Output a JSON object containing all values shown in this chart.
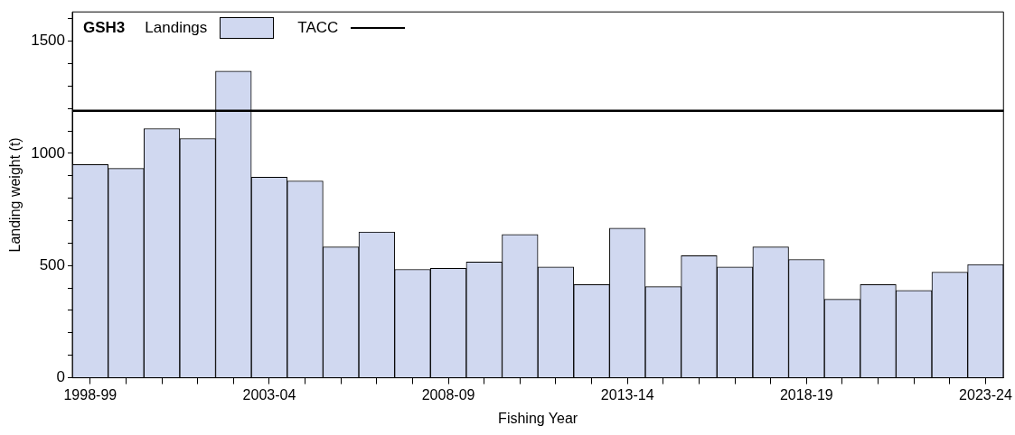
{
  "chart_data": {
    "type": "bar",
    "legend_title": "GSH3",
    "xlabel": "Fishing Year",
    "ylabel": "Landing weight (t)",
    "categories": [
      "1998-99",
      null,
      null,
      null,
      null,
      "2003-04",
      null,
      null,
      null,
      null,
      "2008-09",
      null,
      null,
      null,
      null,
      "2013-14",
      null,
      null,
      null,
      null,
      "2018-19",
      null,
      null,
      null,
      null,
      "2023-24"
    ],
    "series": [
      {
        "name": "Landings",
        "color": "#d0d8f0",
        "values": [
          950,
          933,
          1110,
          1066,
          1366,
          894,
          877,
          583,
          649,
          483,
          488,
          516,
          638,
          494,
          415,
          667,
          406,
          544,
          494,
          583,
          527,
          350,
          415,
          389,
          471,
          505
        ]
      }
    ],
    "ref_lines": [
      {
        "axis": "y",
        "value": 1190,
        "label": "TACC",
        "color": "#000000",
        "line_style": "solid"
      }
    ],
    "ylim": [
      0,
      1630
    ],
    "yticks": [
      0,
      {
        "value": 100,
        "label": null
      },
      {
        "value": 200,
        "label": null
      },
      {
        "value": 300,
        "label": null
      },
      {
        "value": 400,
        "label": null
      },
      500,
      {
        "value": 600,
        "label": null
      },
      {
        "value": 700,
        "label": null
      },
      {
        "value": 800,
        "label": null
      },
      {
        "value": 900,
        "label": null
      },
      1000,
      {
        "value": 1100,
        "label": null
      },
      {
        "value": 1200,
        "label": null
      },
      {
        "value": 1300,
        "label": null
      },
      {
        "value": 1400,
        "label": null
      },
      1500,
      {
        "value": 1600,
        "label": null
      }
    ],
    "grid": false,
    "legend": "top left"
  }
}
